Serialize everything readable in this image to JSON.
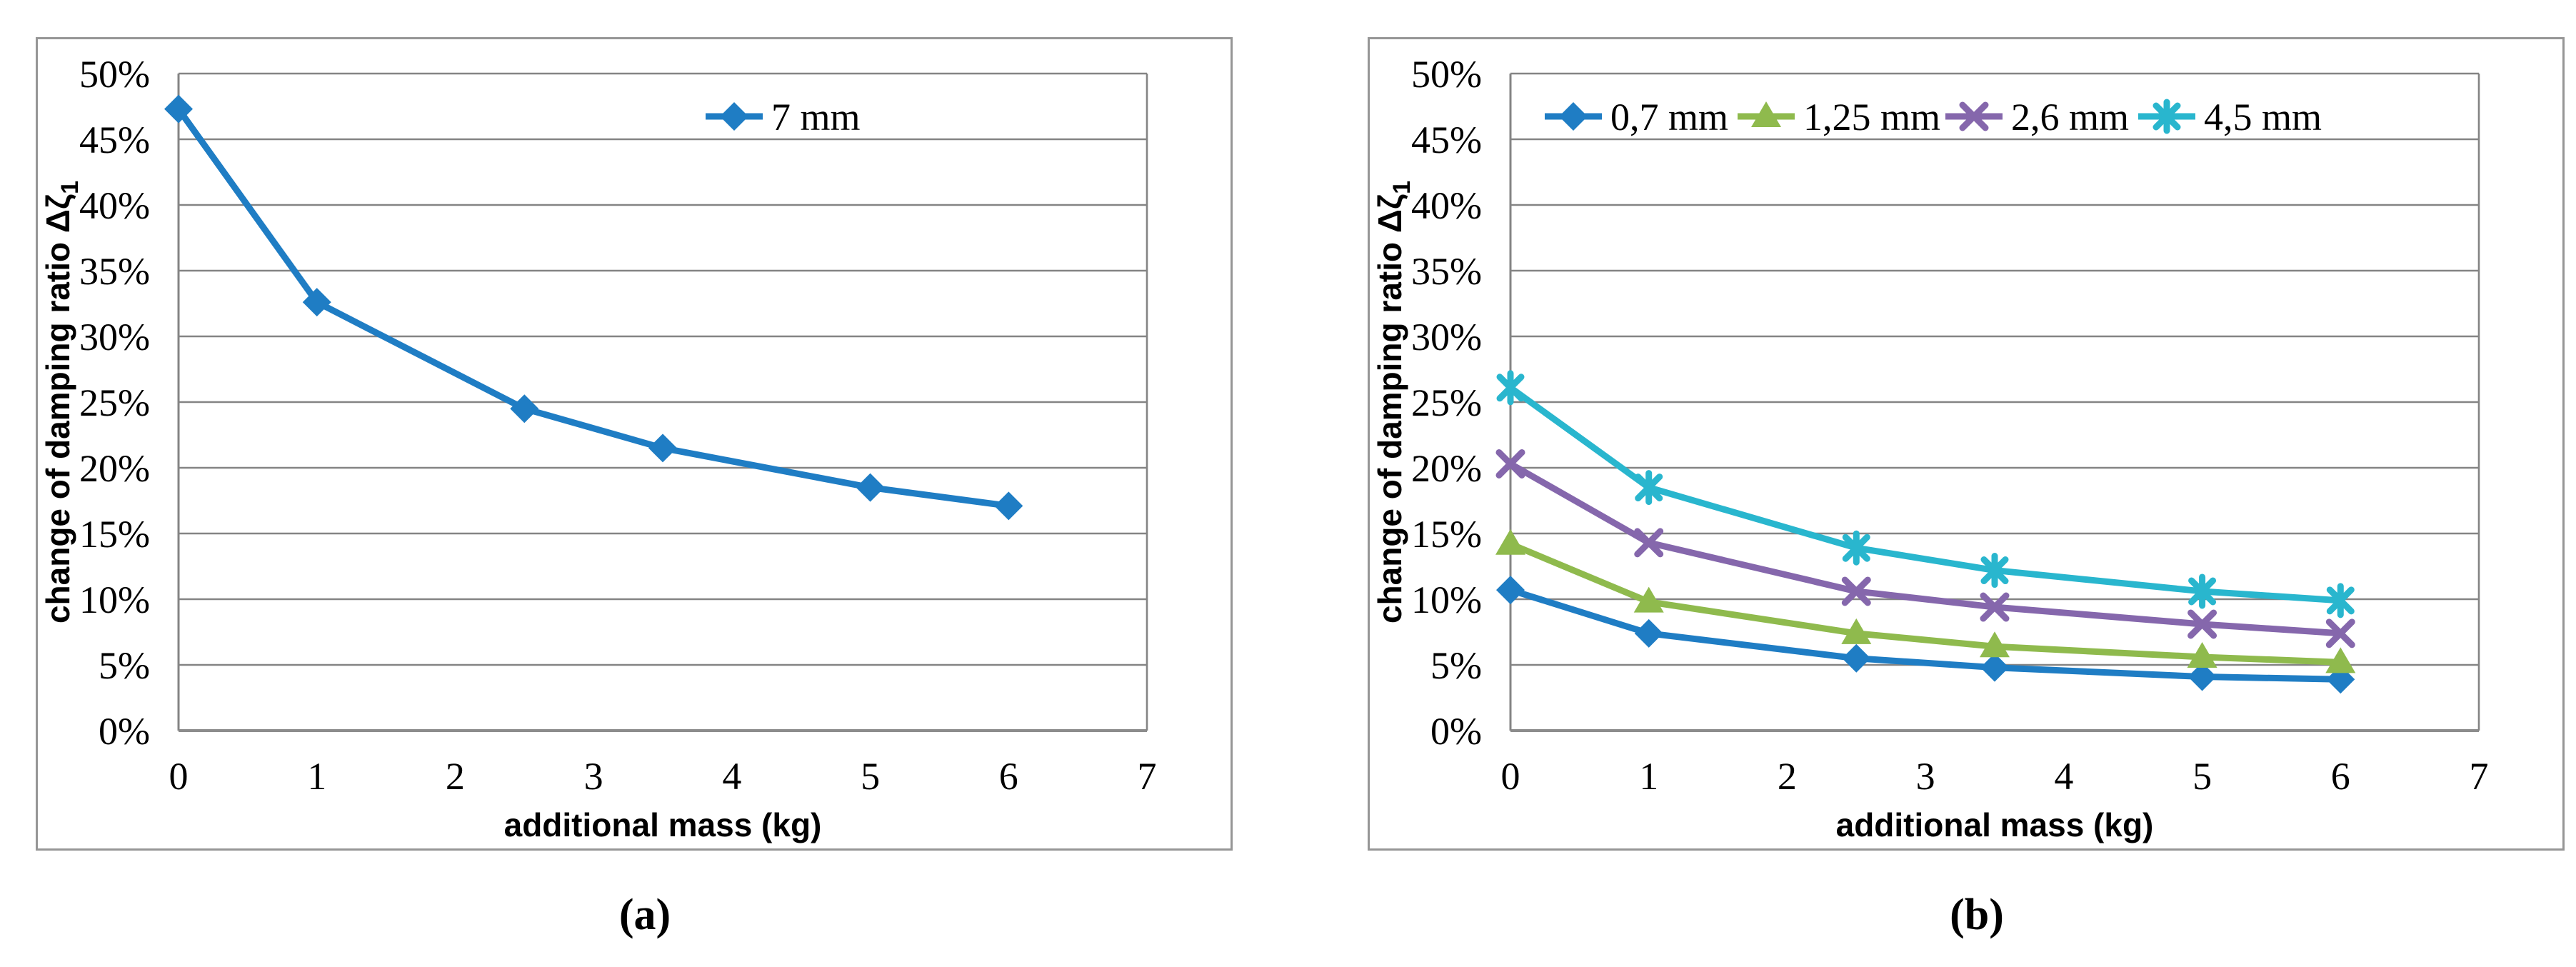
{
  "figure": {
    "captions": {
      "a": "(a)",
      "b": "(b)"
    }
  },
  "styles": {
    "grid_color": "#848484",
    "axis_color": "#8C8C8C",
    "panel_border_color": "#969696",
    "text_color": "#000000",
    "series_blue": "#1F7DC4",
    "series_green": "#8FBA4D",
    "series_purple": "#8567AC",
    "series_cyan": "#29B6CE"
  },
  "chart_data": [
    {
      "id": "a",
      "type": "line",
      "title": "",
      "xlabel": "additional mass (kg)",
      "ylabel": "change of damping ratio Δζ1",
      "ylabel_parts": {
        "main": "change of damping ratio Δζ",
        "sub": "1"
      },
      "xlim": [
        0,
        7
      ],
      "ylim_percent": [
        0,
        50
      ],
      "xticks": [
        0,
        1,
        2,
        3,
        4,
        5,
        6,
        7
      ],
      "ytick_step_percent": 5,
      "ytick_labels": [
        "0%",
        "5%",
        "10%",
        "15%",
        "20%",
        "25%",
        "30%",
        "35%",
        "40%",
        "45%",
        "50%"
      ],
      "grid": "horizontal",
      "legend_position": "top-inside",
      "x": [
        0,
        1,
        2.5,
        3.5,
        5,
        6
      ],
      "series": [
        {
          "name": "7 mm",
          "color": "#1F7DC4",
          "marker": "diamond",
          "values_percent": [
            47.3,
            32.6,
            24.5,
            21.5,
            18.5,
            17.1
          ]
        }
      ]
    },
    {
      "id": "b",
      "type": "line",
      "title": "",
      "xlabel": "additional mass (kg)",
      "ylabel": "change of damping ratio Δζ1",
      "ylabel_parts": {
        "main": "change of damping ratio Δζ",
        "sub": "1"
      },
      "xlim": [
        0,
        7
      ],
      "ylim_percent": [
        0,
        50
      ],
      "xticks": [
        0,
        1,
        2,
        3,
        4,
        5,
        6,
        7
      ],
      "ytick_step_percent": 5,
      "ytick_labels": [
        "0%",
        "5%",
        "10%",
        "15%",
        "20%",
        "25%",
        "30%",
        "35%",
        "40%",
        "45%",
        "50%"
      ],
      "grid": "horizontal",
      "legend_position": "top-inside",
      "x": [
        0,
        1,
        2.5,
        3.5,
        5,
        6
      ],
      "series": [
        {
          "name": "0,7 mm",
          "color": "#1F7DC4",
          "marker": "diamond",
          "values_percent": [
            10.7,
            7.4,
            5.5,
            4.8,
            4.1,
            3.9
          ]
        },
        {
          "name": "1,25 mm",
          "color": "#8FBA4D",
          "marker": "triangle",
          "values_percent": [
            14.2,
            9.8,
            7.4,
            6.4,
            5.6,
            5.2
          ]
        },
        {
          "name": "2,6 mm",
          "color": "#8567AC",
          "marker": "x",
          "values_percent": [
            20.3,
            14.3,
            10.6,
            9.4,
            8.1,
            7.4
          ]
        },
        {
          "name": "4,5 mm",
          "color": "#29B6CE",
          "marker": "asterisk",
          "values_percent": [
            26.1,
            18.5,
            13.9,
            12.2,
            10.6,
            9.9
          ]
        }
      ]
    }
  ]
}
